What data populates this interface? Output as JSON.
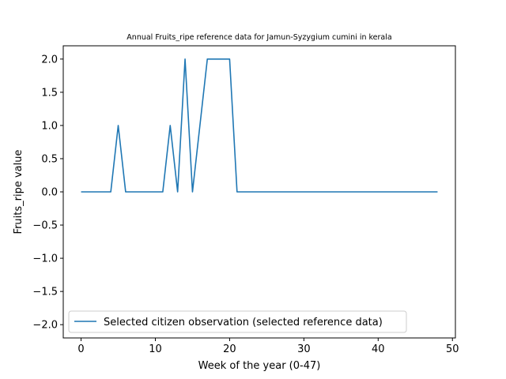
{
  "chart_data": {
    "type": "line",
    "title": "Annual Fruits_ripe reference data for Jamun-Syzygium cumini in kerala",
    "xlabel": "Week of the year (0-47)",
    "ylabel": "Fruits_ripe value",
    "xlim": [
      -2.4,
      50.4
    ],
    "ylim": [
      -2.2,
      2.2
    ],
    "xticks": [
      0,
      10,
      20,
      30,
      40,
      50
    ],
    "yticks": [
      -2.0,
      -1.5,
      -1.0,
      -0.5,
      0.0,
      0.5,
      1.0,
      1.5,
      2.0
    ],
    "legend_position": "lower-left",
    "grid": false,
    "series": [
      {
        "name": "Selected citizen observation (selected reference data)",
        "color": "#1f77b4",
        "x": [
          0,
          1,
          2,
          3,
          4,
          5,
          6,
          7,
          8,
          9,
          10,
          11,
          12,
          13,
          14,
          15,
          16,
          17,
          18,
          19,
          20,
          21,
          22,
          23,
          24,
          25,
          26,
          27,
          28,
          29,
          30,
          31,
          32,
          33,
          34,
          35,
          36,
          37,
          38,
          39,
          40,
          41,
          42,
          43,
          44,
          45,
          46,
          47,
          48
        ],
        "y": [
          0,
          0,
          0,
          0,
          0,
          1,
          0,
          0,
          0,
          0,
          0,
          0,
          1,
          0,
          2,
          0,
          1,
          2,
          2,
          2,
          2,
          0,
          0,
          0,
          0,
          0,
          0,
          0,
          0,
          0,
          0,
          0,
          0,
          0,
          0,
          0,
          0,
          0,
          0,
          0,
          0,
          0,
          0,
          0,
          0,
          0,
          0,
          0,
          0
        ]
      }
    ]
  }
}
